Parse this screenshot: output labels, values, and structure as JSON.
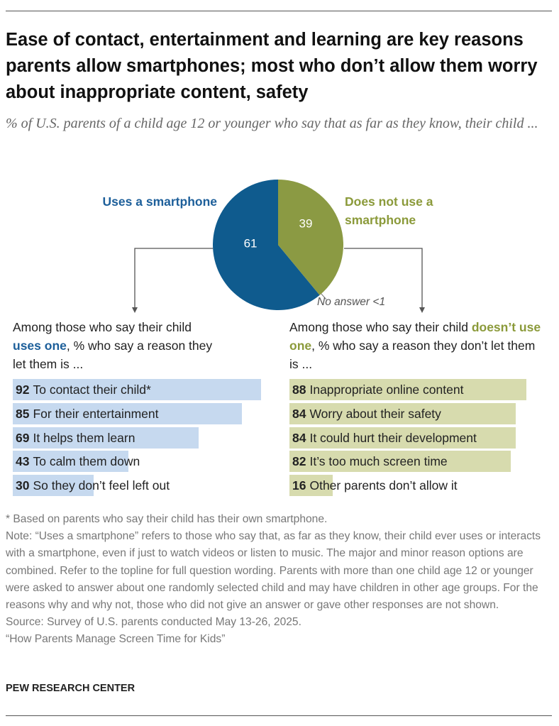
{
  "title": "Ease of contact, entertainment and learning are key reasons parents allow smartphones; most who don’t allow them worry about inappropriate content, safety",
  "subtitle": "% of U.S. parents of a child age 12 or younger who say that as far as they know, their child ...",
  "chart_data": [
    {
      "type": "pie",
      "categories": [
        "Uses a smartphone",
        "Does not use a smartphone"
      ],
      "values": [
        61,
        39
      ],
      "colors": [
        "#0f5b8e",
        "#8b9a43"
      ],
      "label_colors": [
        "#1d5f9a",
        "#8b9a3a"
      ],
      "annotation": "No answer <1"
    },
    {
      "type": "bar",
      "intro": [
        "Among those who say their child ",
        "uses one",
        ", % who say a reason they let them is ..."
      ],
      "categories": [
        "To contact their child*",
        "For their entertainment",
        "It helps them learn",
        "To calm them down",
        "So they don’t feel left out"
      ],
      "values": [
        92,
        85,
        69,
        43,
        30
      ],
      "color": "#c6d9ef",
      "accent": "#1d5f9a",
      "xlim": [
        0,
        100
      ]
    },
    {
      "type": "bar",
      "intro": [
        "Among those who say their child ",
        "doesn’t use one",
        ", % who say a reason they don’t let them is ..."
      ],
      "categories": [
        "Inappropriate online content",
        "Worry about their safety",
        "It could hurt their development",
        "It’s too much screen time",
        "Other parents don’t allow it"
      ],
      "values": [
        88,
        84,
        84,
        82,
        16
      ],
      "color": "#d7dbae",
      "accent": "#8b9a3a",
      "xlim": [
        0,
        100
      ]
    }
  ],
  "notes": [
    "* Based on parents who say their child has their own smartphone.",
    "Note: “Uses a smartphone” refers to those who say that, as far as they know, their child ever uses or interacts with a smartphone, even if just to watch videos or listen to music. The major and minor reason options are combined. Refer to the topline for full question wording. Parents with more than one child age 12 or younger were asked to answer about one randomly selected child and may have children in other age groups. For the reasons why and why not, those who did not give an answer or gave other responses are not shown.",
    "Source: Survey of U.S. parents conducted May 13-26, 2025.",
    "“How Parents Manage Screen Time for Kids”"
  ],
  "brand": "PEW RESEARCH CENTER"
}
